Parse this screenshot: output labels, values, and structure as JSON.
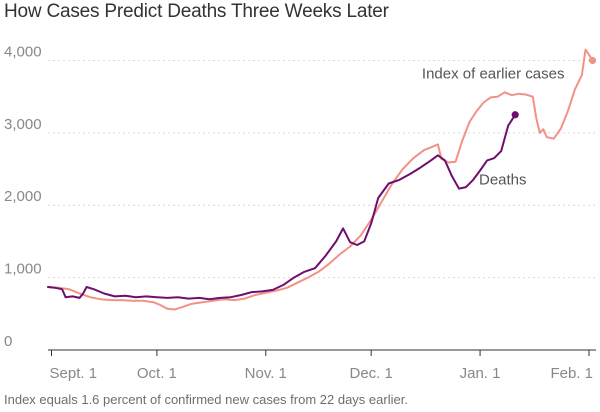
{
  "title": "How Cases Predict Deaths Three Weeks Later",
  "footnote": "Index equals 1.6 percent of confirmed new cases from 22 days earlier.",
  "colors": {
    "cases": "#f19286",
    "deaths": "#6e0f6e",
    "grid": "#d9d9d9",
    "axis": "#333333",
    "tick_text": "#888888",
    "annotation_text": "#555555"
  },
  "chart_data": {
    "type": "line",
    "title": "How Cases Predict Deaths Three Weeks Later",
    "xlabel": "",
    "ylabel": "",
    "x_type": "date",
    "xlim": [
      "2020-08-31",
      "2021-02-03"
    ],
    "ylim": [
      0,
      4200
    ],
    "y_ticks": [
      0,
      1000,
      2000,
      3000,
      4000
    ],
    "y_tick_labels": [
      "0",
      "1,000",
      "2,000",
      "3,000",
      "4,000"
    ],
    "x_ticks": [
      "2020-09-01",
      "2020-10-01",
      "2020-11-01",
      "2020-12-01",
      "2021-01-01",
      "2021-02-01"
    ],
    "x_tick_labels": [
      "Sept. 1",
      "Oct. 1",
      "Nov. 1",
      "Dec. 1",
      "Jan. 1",
      "Feb. 1"
    ],
    "grid": true,
    "legend": "none",
    "series": [
      {
        "name": "Index of earlier cases",
        "color": "#f19286",
        "end_marker": true,
        "points": [
          [
            "2020-08-31",
            870
          ],
          [
            "2020-09-03",
            860
          ],
          [
            "2020-09-06",
            840
          ],
          [
            "2020-09-09",
            780
          ],
          [
            "2020-09-12",
            730
          ],
          [
            "2020-09-15",
            700
          ],
          [
            "2020-09-18",
            690
          ],
          [
            "2020-09-21",
            690
          ],
          [
            "2020-09-24",
            680
          ],
          [
            "2020-09-27",
            680
          ],
          [
            "2020-09-30",
            660
          ],
          [
            "2020-10-02",
            620
          ],
          [
            "2020-10-04",
            570
          ],
          [
            "2020-10-06",
            560
          ],
          [
            "2020-10-08",
            590
          ],
          [
            "2020-10-11",
            640
          ],
          [
            "2020-10-14",
            660
          ],
          [
            "2020-10-17",
            680
          ],
          [
            "2020-10-20",
            700
          ],
          [
            "2020-10-23",
            690
          ],
          [
            "2020-10-26",
            710
          ],
          [
            "2020-10-29",
            760
          ],
          [
            "2020-11-01",
            790
          ],
          [
            "2020-11-04",
            820
          ],
          [
            "2020-11-07",
            860
          ],
          [
            "2020-11-10",
            930
          ],
          [
            "2020-11-13",
            1000
          ],
          [
            "2020-11-16",
            1080
          ],
          [
            "2020-11-19",
            1190
          ],
          [
            "2020-11-22",
            1320
          ],
          [
            "2020-11-25",
            1430
          ],
          [
            "2020-11-28",
            1580
          ],
          [
            "2020-12-01",
            1800
          ],
          [
            "2020-12-04",
            2050
          ],
          [
            "2020-12-07",
            2300
          ],
          [
            "2020-12-10",
            2500
          ],
          [
            "2020-12-13",
            2650
          ],
          [
            "2020-12-16",
            2760
          ],
          [
            "2020-12-19",
            2820
          ],
          [
            "2020-12-20",
            2840
          ],
          [
            "2020-12-21",
            2640
          ],
          [
            "2020-12-23",
            2590
          ],
          [
            "2020-12-25",
            2600
          ],
          [
            "2020-12-27",
            2900
          ],
          [
            "2020-12-29",
            3150
          ],
          [
            "2020-12-31",
            3300
          ],
          [
            "2021-01-02",
            3420
          ],
          [
            "2021-01-04",
            3490
          ],
          [
            "2021-01-06",
            3500
          ],
          [
            "2021-01-08",
            3560
          ],
          [
            "2021-01-10",
            3520
          ],
          [
            "2021-01-12",
            3540
          ],
          [
            "2021-01-14",
            3530
          ],
          [
            "2021-01-16",
            3500
          ],
          [
            "2021-01-17",
            3200
          ],
          [
            "2021-01-18",
            3000
          ],
          [
            "2021-01-19",
            3050
          ],
          [
            "2021-01-20",
            2940
          ],
          [
            "2021-01-22",
            2920
          ],
          [
            "2021-01-24",
            3060
          ],
          [
            "2021-01-26",
            3300
          ],
          [
            "2021-01-28",
            3600
          ],
          [
            "2021-01-30",
            3800
          ],
          [
            "2021-01-31",
            4150
          ],
          [
            "2021-02-01",
            4080
          ],
          [
            "2021-02-02",
            4000
          ]
        ]
      },
      {
        "name": "Deaths",
        "color": "#6e0f6e",
        "end_marker": true,
        "points": [
          [
            "2020-08-31",
            870
          ],
          [
            "2020-09-02",
            860
          ],
          [
            "2020-09-04",
            840
          ],
          [
            "2020-09-05",
            730
          ],
          [
            "2020-09-07",
            740
          ],
          [
            "2020-09-09",
            720
          ],
          [
            "2020-09-10",
            780
          ],
          [
            "2020-09-11",
            870
          ],
          [
            "2020-09-13",
            840
          ],
          [
            "2020-09-16",
            780
          ],
          [
            "2020-09-19",
            740
          ],
          [
            "2020-09-22",
            750
          ],
          [
            "2020-09-25",
            730
          ],
          [
            "2020-09-28",
            740
          ],
          [
            "2020-10-01",
            730
          ],
          [
            "2020-10-04",
            720
          ],
          [
            "2020-10-07",
            730
          ],
          [
            "2020-10-10",
            710
          ],
          [
            "2020-10-13",
            720
          ],
          [
            "2020-10-16",
            700
          ],
          [
            "2020-10-19",
            720
          ],
          [
            "2020-10-22",
            730
          ],
          [
            "2020-10-25",
            760
          ],
          [
            "2020-10-28",
            800
          ],
          [
            "2020-10-31",
            810
          ],
          [
            "2020-11-03",
            830
          ],
          [
            "2020-11-06",
            900
          ],
          [
            "2020-11-09",
            1000
          ],
          [
            "2020-11-12",
            1080
          ],
          [
            "2020-11-15",
            1130
          ],
          [
            "2020-11-18",
            1300
          ],
          [
            "2020-11-21",
            1500
          ],
          [
            "2020-11-23",
            1680
          ],
          [
            "2020-11-25",
            1490
          ],
          [
            "2020-11-27",
            1450
          ],
          [
            "2020-11-29",
            1500
          ],
          [
            "2020-12-01",
            1750
          ],
          [
            "2020-12-03",
            2100
          ],
          [
            "2020-12-06",
            2300
          ],
          [
            "2020-12-09",
            2350
          ],
          [
            "2020-12-12",
            2430
          ],
          [
            "2020-12-15",
            2520
          ],
          [
            "2020-12-18",
            2620
          ],
          [
            "2020-12-20",
            2690
          ],
          [
            "2020-12-22",
            2620
          ],
          [
            "2020-12-24",
            2400
          ],
          [
            "2020-12-26",
            2230
          ],
          [
            "2020-12-28",
            2250
          ],
          [
            "2020-12-30",
            2350
          ],
          [
            "2021-01-01",
            2480
          ],
          [
            "2021-01-03",
            2620
          ],
          [
            "2021-01-05",
            2650
          ],
          [
            "2021-01-07",
            2750
          ],
          [
            "2021-01-09",
            3100
          ],
          [
            "2021-01-11",
            3250
          ]
        ]
      }
    ],
    "annotations": [
      {
        "text": "Index of earlier cases",
        "series": "Index of earlier cases",
        "anchor": "end"
      },
      {
        "text": "Deaths",
        "series": "Deaths",
        "anchor": "start"
      }
    ]
  }
}
